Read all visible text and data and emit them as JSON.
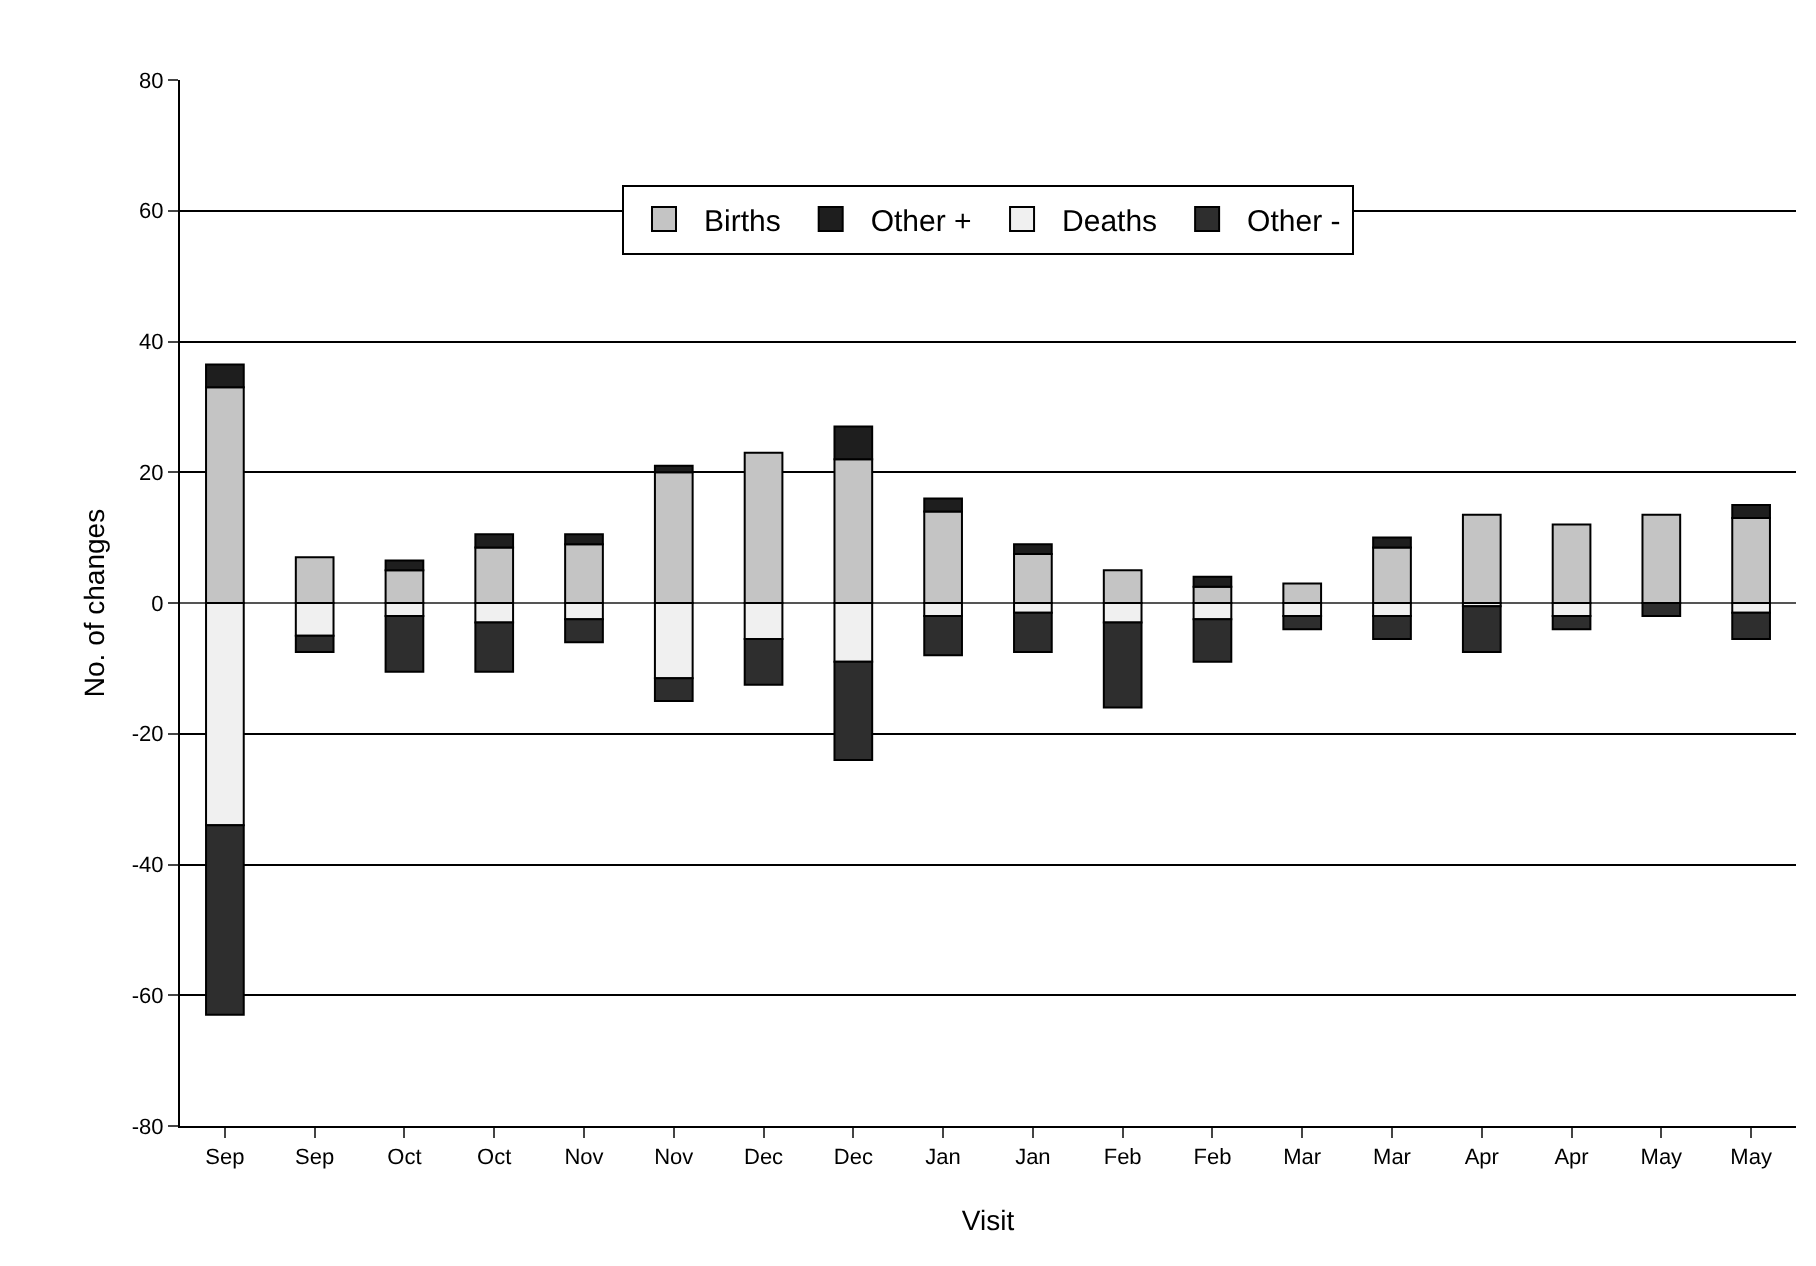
{
  "chart_data": {
    "type": "bar",
    "stacked": true,
    "xlabel": "Visit",
    "ylabel": "No. of changes",
    "categories": [
      "Sep",
      "Sep",
      "Oct",
      "Oct",
      "Nov",
      "Nov",
      "Dec",
      "Dec",
      "Jan",
      "Jan",
      "Feb",
      "Feb",
      "Mar",
      "Mar",
      "Apr",
      "Apr",
      "May",
      "May"
    ],
    "series": [
      {
        "name": "Births",
        "color": "#c4c4c4",
        "values": [
          33,
          7,
          5,
          8.5,
          9,
          20,
          23,
          22,
          14,
          7.5,
          5,
          2.5,
          3,
          8.5,
          13.5,
          12,
          13.5,
          13
        ]
      },
      {
        "name": "Other +",
        "color": "#1e1e1e",
        "values": [
          3.5,
          null,
          1.5,
          2,
          1.5,
          1,
          null,
          5,
          2,
          1.5,
          null,
          1.5,
          null,
          1.5,
          null,
          null,
          null,
          2
        ]
      },
      {
        "name": "Deaths",
        "color": "#f0f0f0",
        "values": [
          -34,
          -5,
          -2,
          -3,
          -2.5,
          -11.5,
          -5.5,
          -9,
          -2,
          -1.5,
          -3,
          -2.5,
          -2,
          -2,
          -0.5,
          -2,
          null,
          -1.5
        ]
      },
      {
        "name": "Other -",
        "color": "#2e2e2e",
        "values": [
          -29,
          -2.5,
          -8.5,
          -7.5,
          -3.5,
          -3.5,
          -7,
          -15,
          -6,
          -6,
          -13,
          -6.5,
          -2,
          -3.5,
          -7,
          -2,
          -2,
          -4
        ]
      }
    ],
    "ylim": [
      -80,
      80
    ],
    "yticks": [
      -80,
      -60,
      -40,
      -20,
      0,
      20,
      40,
      60,
      80
    ],
    "grid": "y",
    "legend": "top"
  }
}
